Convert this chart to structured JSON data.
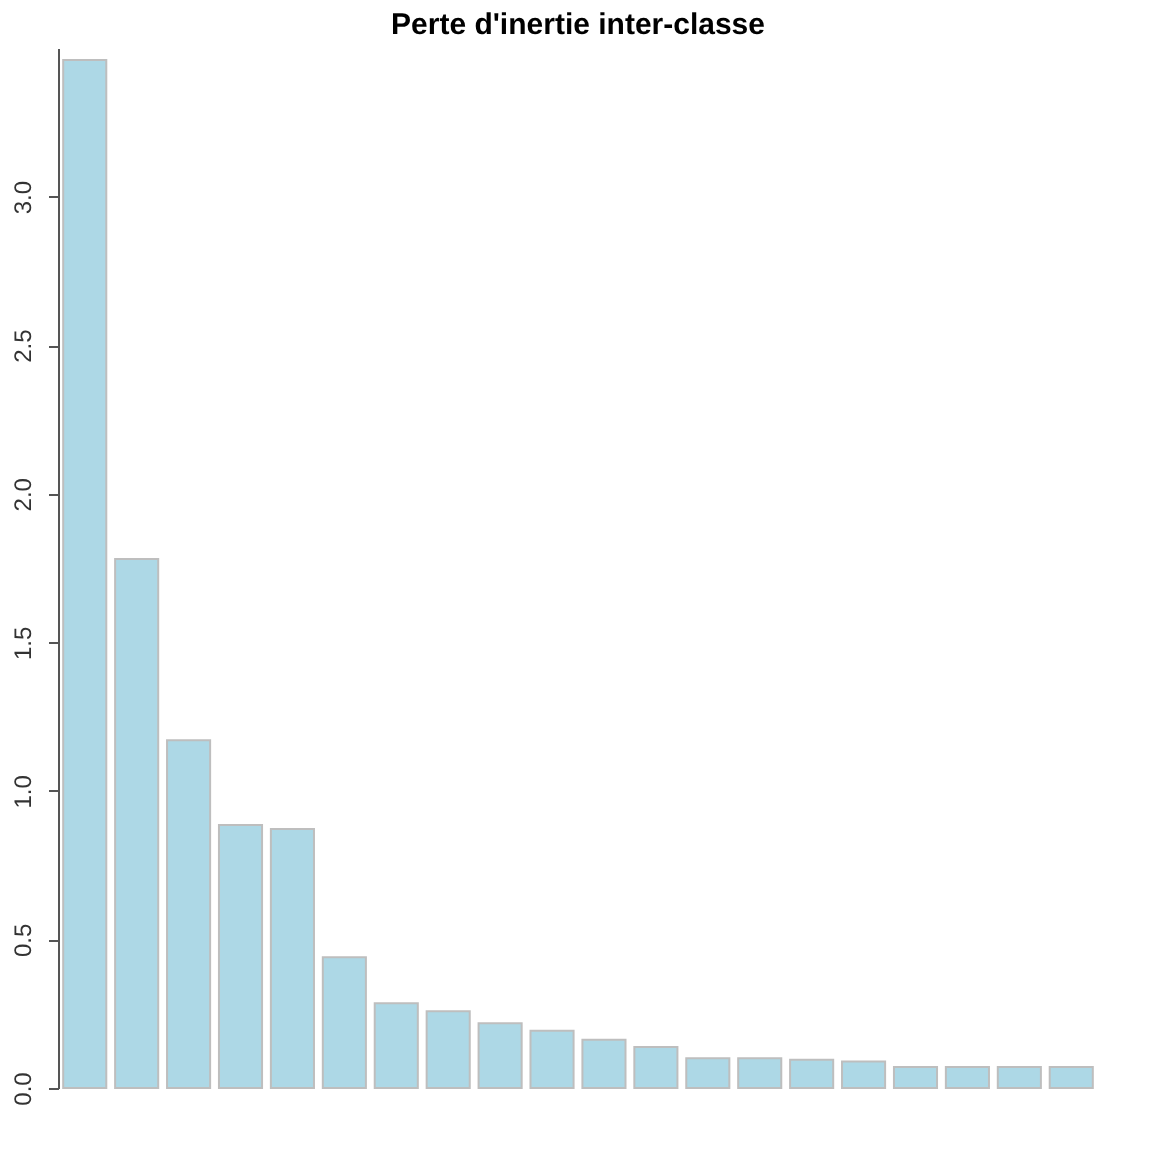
{
  "chart_data": {
    "type": "bar",
    "title": "Perte d'inertie inter-classe",
    "categories": [
      null,
      null,
      null,
      null,
      null,
      null,
      null,
      null,
      null,
      null,
      null,
      null,
      null,
      null,
      null,
      null,
      null,
      null,
      null,
      null
    ],
    "values": [
      3.46,
      1.78,
      1.17,
      0.885,
      0.872,
      0.44,
      0.285,
      0.258,
      0.218,
      0.193,
      0.162,
      0.138,
      0.1,
      0.1,
      0.095,
      0.089,
      0.071,
      0.071,
      0.071,
      0.071
    ],
    "color": "#add8e6",
    "ylim": [
      0,
      3.5
    ],
    "yticks": [
      {
        "value": 0,
        "label": "0.0"
      },
      0.5,
      {
        "value": 1,
        "label": "1.0"
      },
      1.5,
      {
        "value": 2,
        "label": "2.0"
      },
      2.5,
      {
        "value": 3,
        "label": "3.0"
      }
    ],
    "tick_labels": "y",
    "grid": false
  }
}
